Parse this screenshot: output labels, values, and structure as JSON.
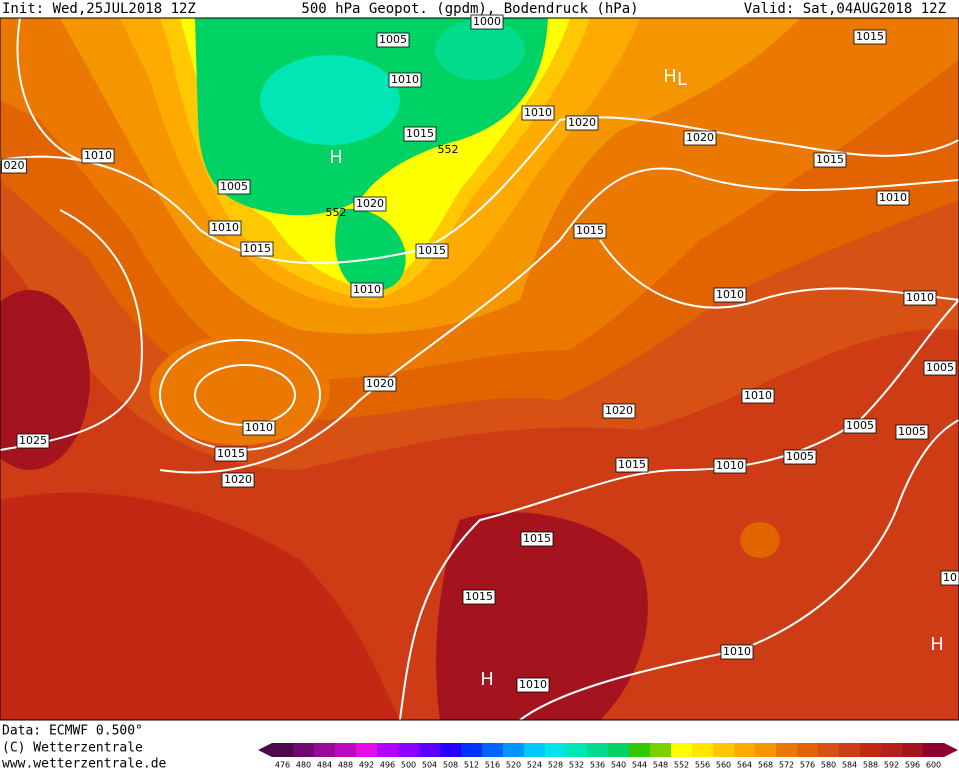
{
  "header": {
    "init": "Init: Wed,25JUL2018 12Z",
    "title": "500 hPa Geopot. (gpdm), Bodendruck (hPa)",
    "valid": "Valid: Sat,04AUG2018 12Z"
  },
  "isobar_labels": [
    "1000",
    "1005",
    "1010",
    "1010",
    "1020",
    "1020",
    "1015",
    "1015",
    "1010",
    "020",
    "1010",
    "1005",
    "1015",
    "552",
    "552",
    "1020",
    "1010",
    "1015",
    "1015",
    "1010",
    "1015",
    "1010",
    "1010",
    "1005",
    "1020",
    "1010",
    "1005",
    "1005",
    "1025",
    "1010",
    "1015",
    "1020",
    "1020",
    "1015",
    "1010",
    "1005",
    "1015",
    "1015",
    "1010",
    "1010",
    "10"
  ],
  "pressure_centers": [
    "H",
    "H",
    "L",
    "H",
    "H"
  ],
  "footer": {
    "data": "Data: ECMWF  0.500°",
    "copyright": "(C) Wetterzentrale",
    "url": "www.wetterzentrale.de"
  },
  "colorbar": {
    "labels": [
      476,
      480,
      484,
      488,
      492,
      496,
      500,
      504,
      508,
      512,
      516,
      520,
      524,
      528,
      532,
      536,
      540,
      544,
      548,
      552,
      556,
      560,
      564,
      568,
      572,
      576,
      580,
      584,
      588,
      592,
      596,
      600
    ],
    "colors": [
      "#4b0a4b",
      "#6e0a6e",
      "#960a96",
      "#be0abe",
      "#e60ae6",
      "#b400ff",
      "#8c00ff",
      "#5a00ff",
      "#2800ff",
      "#0032ff",
      "#0064ff",
      "#0096ff",
      "#00c8ff",
      "#00e6e6",
      "#00e6b4",
      "#00dc8c",
      "#00d264",
      "#32c800",
      "#78d200",
      "#ffff00",
      "#ffe600",
      "#ffc800",
      "#ffaa00",
      "#f59600",
      "#eb7800",
      "#e16400",
      "#d75014",
      "#cd3c14",
      "#c32814",
      "#b91e1e",
      "#a5141e",
      "#91002d"
    ]
  }
}
